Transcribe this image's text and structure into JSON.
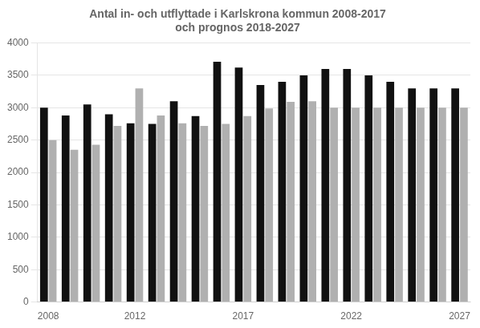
{
  "chart_data": {
    "type": "bar",
    "title": "Antal in- och utflyttade i Karlskrona kommun 2008-2017\noch prognos 2018-2027",
    "categories": [
      "2008",
      null,
      null,
      null,
      "2012",
      null,
      null,
      null,
      null,
      "2017",
      null,
      null,
      null,
      null,
      "2022",
      null,
      null,
      null,
      null,
      "2027"
    ],
    "series": [
      {
        "color": "#111111",
        "values": [
          3000,
          2880,
          3050,
          2900,
          2760,
          2750,
          3100,
          2870,
          3710,
          3620,
          3350,
          3400,
          3500,
          3600,
          3600,
          3500,
          3400,
          3300,
          3300,
          3300
        ]
      },
      {
        "color": "#b0b0b0",
        "values": [
          2500,
          2350,
          2430,
          2720,
          3300,
          2880,
          2760,
          2720,
          2750,
          2870,
          2990,
          3090,
          3100,
          3000,
          3000,
          3000,
          3000,
          3000,
          3000,
          3000
        ]
      }
    ],
    "ylim": [
      0,
      4000
    ],
    "yticks": [
      0,
      500,
      1000,
      1500,
      2000,
      2500,
      3000,
      3500,
      4000
    ],
    "grid": true
  }
}
